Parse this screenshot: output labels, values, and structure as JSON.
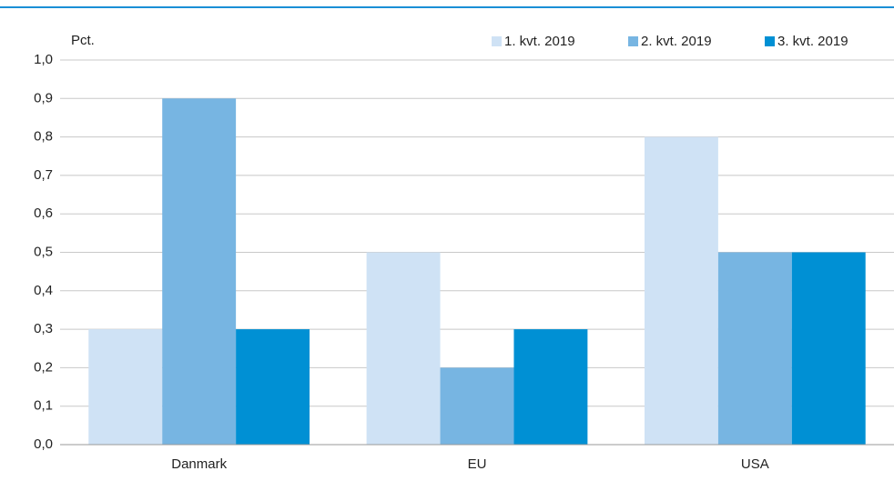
{
  "chart_data": {
    "type": "bar",
    "y_label": "Pct.",
    "categories": [
      "Danmark",
      "EU",
      "USA"
    ],
    "series": [
      {
        "name": "1. kvt. 2019",
        "color": "#cfe2f5",
        "values": [
          0.3,
          0.5,
          0.8
        ]
      },
      {
        "name": "2. kvt. 2019",
        "color": "#77b5e2",
        "values": [
          0.9,
          0.2,
          0.5
        ]
      },
      {
        "name": "3. kvt. 2019",
        "color": "#0090d4",
        "values": [
          0.3,
          0.3,
          0.5
        ]
      }
    ],
    "ylim": [
      0,
      1
    ],
    "yticks": [
      {
        "value": 0,
        "label": "0,0"
      },
      {
        "value": 0.1,
        "label": "0,1"
      },
      {
        "value": 0.2,
        "label": "0,2"
      },
      {
        "value": 0.3,
        "label": "0,3"
      },
      {
        "value": 0.4,
        "label": "0,4"
      },
      {
        "value": 0.5,
        "label": "0,5"
      },
      {
        "value": 0.6,
        "label": "0,6"
      },
      {
        "value": 0.7,
        "label": "0,7"
      },
      {
        "value": 0.8,
        "label": "0,8"
      },
      {
        "value": 0.9,
        "label": "0,9"
      },
      {
        "value": 1,
        "label": "1,0"
      }
    ],
    "grid": true,
    "legend": "top-right"
  }
}
